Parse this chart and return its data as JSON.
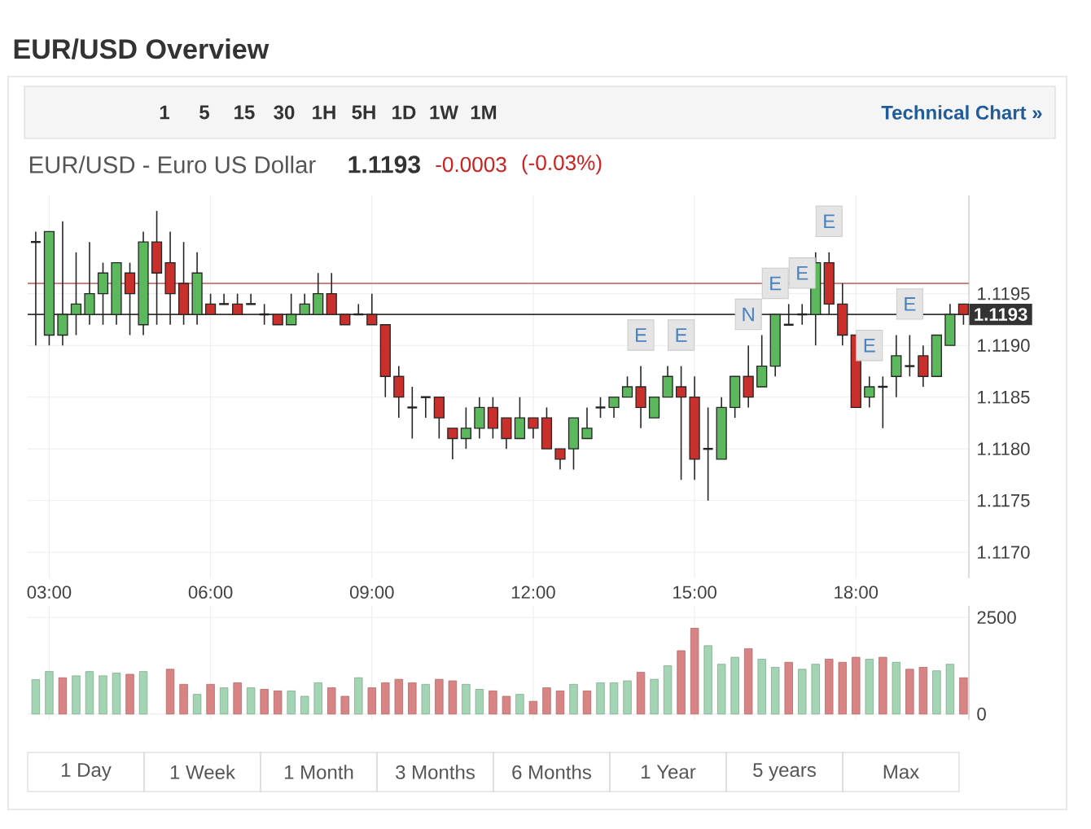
{
  "chart_data": [
    {
      "type": "candlestick",
      "title": "EUR/USD Overview",
      "subtitle": "EUR/USD - Euro US Dollar",
      "x": [
        2.75,
        3,
        3.25,
        3.5,
        3.75,
        4,
        4.25,
        4.5,
        4.75,
        5,
        5.25,
        5.5,
        5.75,
        6,
        6.25,
        6.5,
        6.75,
        7,
        7.25,
        7.5,
        7.75,
        8,
        8.25,
        8.5,
        8.75,
        9,
        9.25,
        9.5,
        9.75,
        10,
        10.25,
        10.5,
        10.75,
        11,
        11.25,
        11.5,
        11.75,
        12,
        12.25,
        12.5,
        12.75,
        13,
        13.25,
        13.5,
        13.75,
        14,
        14.25,
        14.5,
        14.75,
        15,
        15.25,
        15.5,
        15.75,
        16,
        16.25,
        16.5,
        16.75,
        17,
        17.25,
        17.5,
        17.75,
        18,
        18.25,
        18.5,
        18.75,
        19,
        19.25,
        19.5,
        19.75,
        20
      ],
      "ohlc": [
        [
          1.12,
          1.1201,
          1.119,
          1.12
        ],
        [
          1.1191,
          1.1201,
          1.119,
          1.1201
        ],
        [
          1.1191,
          1.1202,
          1.119,
          1.1193
        ],
        [
          1.1193,
          1.1199,
          1.1191,
          1.1194
        ],
        [
          1.1193,
          1.12,
          1.1192,
          1.1195
        ],
        [
          1.1195,
          1.1198,
          1.1192,
          1.1197
        ],
        [
          1.1193,
          1.1198,
          1.1192,
          1.1198
        ],
        [
          1.1197,
          1.1198,
          1.1191,
          1.1195
        ],
        [
          1.1192,
          1.1201,
          1.1191,
          1.12
        ],
        [
          1.12,
          1.1203,
          1.1192,
          1.1197
        ],
        [
          1.1198,
          1.1201,
          1.1192,
          1.1195
        ],
        [
          1.1196,
          1.12,
          1.1192,
          1.1193
        ],
        [
          1.1193,
          1.1199,
          1.1192,
          1.1197
        ],
        [
          1.1194,
          1.1195,
          1.1193,
          1.1193
        ],
        [
          1.1194,
          1.1195,
          1.1194,
          1.1194
        ],
        [
          1.1194,
          1.1195,
          1.1193,
          1.1193
        ],
        [
          1.1194,
          1.1195,
          1.1194,
          1.1194
        ],
        [
          1.1193,
          1.1194,
          1.1192,
          1.1193
        ],
        [
          1.1193,
          1.1193,
          1.1192,
          1.1192
        ],
        [
          1.1192,
          1.1195,
          1.1192,
          1.1193
        ],
        [
          1.1193,
          1.1195,
          1.1193,
          1.1194
        ],
        [
          1.1193,
          1.1197,
          1.1193,
          1.1195
        ],
        [
          1.1195,
          1.1197,
          1.1193,
          1.1193
        ],
        [
          1.1193,
          1.1193,
          1.1192,
          1.1192
        ],
        [
          1.1193,
          1.1194,
          1.1193,
          1.1193
        ],
        [
          1.1193,
          1.1195,
          1.1192,
          1.1192
        ],
        [
          1.1192,
          1.1192,
          1.1185,
          1.1187
        ],
        [
          1.1187,
          1.1188,
          1.1183,
          1.1185
        ],
        [
          1.1184,
          1.1186,
          1.1181,
          1.1184
        ],
        [
          1.1185,
          1.1185,
          1.1183,
          1.1185
        ],
        [
          1.1185,
          1.1185,
          1.1181,
          1.1183
        ],
        [
          1.1182,
          1.1182,
          1.1179,
          1.1181
        ],
        [
          1.1181,
          1.1184,
          1.118,
          1.1182
        ],
        [
          1.1182,
          1.1185,
          1.1181,
          1.1184
        ],
        [
          1.1184,
          1.1185,
          1.1181,
          1.1182
        ],
        [
          1.1183,
          1.1183,
          1.118,
          1.1181
        ],
        [
          1.1181,
          1.1185,
          1.1181,
          1.1183
        ],
        [
          1.1183,
          1.1183,
          1.1181,
          1.1182
        ],
        [
          1.1183,
          1.1184,
          1.118,
          1.118
        ],
        [
          1.118,
          1.118,
          1.1178,
          1.1179
        ],
        [
          1.118,
          1.1183,
          1.1178,
          1.1183
        ],
        [
          1.1181,
          1.1184,
          1.1181,
          1.1182
        ],
        [
          1.1184,
          1.1185,
          1.1183,
          1.1184
        ],
        [
          1.1184,
          1.1185,
          1.1183,
          1.1185
        ],
        [
          1.1185,
          1.1187,
          1.1185,
          1.1186
        ],
        [
          1.1186,
          1.1188,
          1.1182,
          1.1184
        ],
        [
          1.1183,
          1.1185,
          1.1183,
          1.1185
        ],
        [
          1.1185,
          1.1188,
          1.1185,
          1.1187
        ],
        [
          1.1186,
          1.1188,
          1.1177,
          1.1185
        ],
        [
          1.1185,
          1.1187,
          1.1177,
          1.1179
        ],
        [
          1.118,
          1.1184,
          1.1175,
          1.118
        ],
        [
          1.1179,
          1.1185,
          1.1179,
          1.1184
        ],
        [
          1.1184,
          1.1187,
          1.1183,
          1.1187
        ],
        [
          1.1187,
          1.119,
          1.1184,
          1.1185
        ],
        [
          1.1186,
          1.1191,
          1.1186,
          1.1188
        ],
        [
          1.1188,
          1.1193,
          1.1187,
          1.1193
        ],
        [
          1.1192,
          1.1194,
          1.1192,
          1.1192
        ],
        [
          1.1193,
          1.1194,
          1.1192,
          1.1193
        ],
        [
          1.1193,
          1.1199,
          1.119,
          1.1198
        ],
        [
          1.1198,
          1.1199,
          1.1193,
          1.1194
        ],
        [
          1.1194,
          1.1196,
          1.119,
          1.1191
        ],
        [
          1.1191,
          1.1191,
          1.1184,
          1.1184
        ],
        [
          1.1185,
          1.1187,
          1.1184,
          1.1186
        ],
        [
          1.1186,
          1.1187,
          1.1182,
          1.1186
        ],
        [
          1.1187,
          1.1191,
          1.1185,
          1.1189
        ],
        [
          1.1188,
          1.1191,
          1.1187,
          1.1188
        ],
        [
          1.1189,
          1.119,
          1.1186,
          1.1187
        ],
        [
          1.1187,
          1.1191,
          1.1187,
          1.1191
        ],
        [
          1.119,
          1.1194,
          1.119,
          1.1193
        ],
        [
          1.1194,
          1.1194,
          1.1192,
          1.1193
        ]
      ],
      "colors": [
        "#222222",
        "#5cb85c",
        "#5cb85c",
        "#5cb85c",
        "#5cb85c",
        "#5cb85c",
        "#5cb85c",
        "#c9302c",
        "#5cb85c",
        "#c9302c",
        "#c9302c",
        "#c9302c",
        "#5cb85c",
        "#c9302c",
        "#222222",
        "#c9302c",
        "#222222",
        "#222222",
        "#c9302c",
        "#5cb85c",
        "#5cb85c",
        "#5cb85c",
        "#c9302c",
        "#c9302c",
        "#222222",
        "#c9302c",
        "#c9302c",
        "#c9302c",
        "#222222",
        "#222222",
        "#c9302c",
        "#c9302c",
        "#5cb85c",
        "#5cb85c",
        "#c9302c",
        "#c9302c",
        "#5cb85c",
        "#c9302c",
        "#c9302c",
        "#c9302c",
        "#5cb85c",
        "#5cb85c",
        "#222222",
        "#5cb85c",
        "#5cb85c",
        "#c9302c",
        "#5cb85c",
        "#5cb85c",
        "#c9302c",
        "#c9302c",
        "#222222",
        "#5cb85c",
        "#5cb85c",
        "#c9302c",
        "#5cb85c",
        "#5cb85c",
        "#222222",
        "#222222",
        "#5cb85c",
        "#c9302c",
        "#c9302c",
        "#c9302c",
        "#5cb85c",
        "#222222",
        "#5cb85c",
        "#222222",
        "#c9302c",
        "#5cb85c",
        "#5cb85c",
        "#c9302c"
      ],
      "xlim": [
        2.6,
        20.1
      ],
      "ylim": [
        1.11675,
        1.12045
      ],
      "xticks": [
        {
          "value": 3,
          "label": "03:00"
        },
        {
          "value": 6,
          "label": "06:00"
        },
        {
          "value": 9,
          "label": "09:00"
        },
        {
          "value": 12,
          "label": "12:00"
        },
        {
          "value": 15,
          "label": "15:00"
        },
        {
          "value": 18,
          "label": "18:00"
        }
      ],
      "yticks": [
        {
          "value": 1.117,
          "label": "1.1170"
        },
        1.1175,
        {
          "value": 1.118,
          "label": "1.1180"
        },
        1.1185,
        {
          "value": 1.119,
          "label": "1.1190"
        },
        1.1195
      ],
      "grid": true,
      "ref_lines": [
        {
          "axis": "y",
          "value": 1.1196,
          "color": "#d08080"
        },
        {
          "axis": "y",
          "value": 1.1193,
          "label": "1.1193",
          "color": "#333333"
        }
      ],
      "annotations": [
        "1.1193",
        "-0.0003",
        "(-0.03%)",
        "1",
        "5",
        "15",
        "30",
        "1H",
        "5H",
        "1D",
        "1W",
        "1M",
        "Technical Chart »",
        "1 Day",
        "1 Week",
        "1 Month",
        "3 Months",
        "6 Months",
        "1 Year",
        "5 years",
        "Max",
        {
          "text": "E",
          "x": 14.0,
          "y": 1.1191
        },
        {
          "text": "E",
          "x": 14.75,
          "y": 1.1191
        },
        {
          "text": "N",
          "x": 16.0,
          "y": 1.1193
        },
        {
          "text": "E",
          "x": 16.5,
          "y": 1.1196
        },
        {
          "text": "E",
          "x": 17.0,
          "y": 1.1197
        },
        {
          "text": "E",
          "x": 17.5,
          "y": 1.1202
        },
        {
          "text": "E",
          "x": 18.25,
          "y": 1.119
        },
        {
          "text": "E",
          "x": 19.0,
          "y": 1.1194
        }
      ]
    },
    {
      "type": "bar",
      "x": [
        2.75,
        3,
        3.25,
        3.5,
        3.75,
        4,
        4.25,
        4.5,
        4.75,
        5,
        5.25,
        5.5,
        5.75,
        6,
        6.25,
        6.5,
        6.75,
        7,
        7.25,
        7.5,
        7.75,
        8,
        8.25,
        8.5,
        8.75,
        9,
        9.25,
        9.5,
        9.75,
        10,
        10.25,
        10.5,
        10.75,
        11,
        11.25,
        11.5,
        11.75,
        12,
        12.25,
        12.5,
        12.75,
        13,
        13.25,
        13.5,
        13.75,
        14,
        14.25,
        14.5,
        14.75,
        15,
        15.25,
        15.5,
        15.75,
        16,
        16.25,
        16.5,
        16.75,
        17,
        17.25,
        17.5,
        17.75,
        18,
        18.25,
        18.5,
        18.75,
        19,
        19.25,
        19.5,
        19.75,
        20
      ],
      "values": [
        890,
        1100,
        940,
        990,
        1100,
        990,
        1060,
        1030,
        1100,
        null,
        1160,
        770,
        510,
        770,
        680,
        810,
        680,
        640,
        600,
        600,
        460,
        810,
        680,
        460,
        940,
        680,
        810,
        900,
        810,
        770,
        900,
        860,
        770,
        640,
        600,
        460,
        510,
        330,
        680,
        600,
        770,
        600,
        810,
        810,
        860,
        1080,
        900,
        1250,
        1640,
        2220,
        1770,
        1290,
        1470,
        1690,
        1420,
        1210,
        1340,
        1160,
        1290,
        1420,
        1340,
        1470,
        1420,
        1470,
        1340,
        1160,
        1210,
        1120,
        1290,
        940
      ],
      "colors": [
        "#a3d4b3",
        "#a3d4b3",
        "#d98484",
        "#a3d4b3",
        "#a3d4b3",
        "#a3d4b3",
        "#a3d4b3",
        "#d98484",
        "#a3d4b3",
        "#a3d4b3",
        "#d98484",
        "#d98484",
        "#a3d4b3",
        "#d98484",
        "#a3d4b3",
        "#d98484",
        "#a3d4b3",
        "#d98484",
        "#d98484",
        "#a3d4b3",
        "#a3d4b3",
        "#a3d4b3",
        "#d98484",
        "#d98484",
        "#a3d4b3",
        "#d98484",
        "#d98484",
        "#d98484",
        "#d98484",
        "#a3d4b3",
        "#d98484",
        "#d98484",
        "#a3d4b3",
        "#a3d4b3",
        "#d98484",
        "#d98484",
        "#a3d4b3",
        "#d98484",
        "#d98484",
        "#d98484",
        "#a3d4b3",
        "#d98484",
        "#a3d4b3",
        "#a3d4b3",
        "#a3d4b3",
        "#d98484",
        "#a3d4b3",
        "#a3d4b3",
        "#d98484",
        "#d98484",
        "#a3d4b3",
        "#a3d4b3",
        "#a3d4b3",
        "#d98484",
        "#a3d4b3",
        "#a3d4b3",
        "#d98484",
        "#a3d4b3",
        "#a3d4b3",
        "#d98484",
        "#d98484",
        "#d98484",
        "#a3d4b3",
        "#d98484",
        "#a3d4b3",
        "#d98484",
        "#d98484",
        "#a3d4b3",
        "#a3d4b3",
        "#d98484"
      ],
      "xlim": [
        2.6,
        20.1
      ],
      "ylim": [
        -150,
        2800
      ],
      "xticks": [
        3,
        6,
        9,
        12,
        15,
        18
      ],
      "yticks": [
        0,
        2500
      ],
      "tick_labels": "y",
      "grid": true
    }
  ]
}
